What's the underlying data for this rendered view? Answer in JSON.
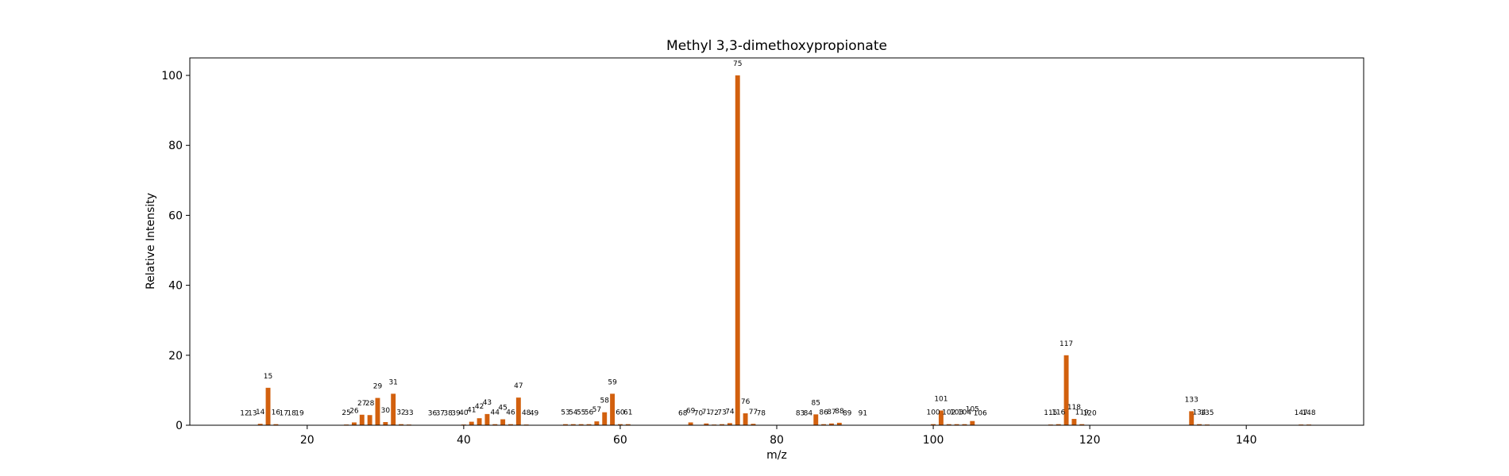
{
  "chart_data": {
    "type": "bar",
    "title": "Methyl 3,3-dimethoxypropionate",
    "xlabel": "m/z",
    "ylabel": "Relative Intensity",
    "xlim": [
      5,
      155
    ],
    "ylim": [
      0,
      105
    ],
    "xticks": [
      20,
      40,
      60,
      80,
      100,
      120,
      140
    ],
    "yticks": [
      0,
      20,
      40,
      60,
      80,
      100
    ],
    "grid": false,
    "bar_color": "#d2600e",
    "series": [
      {
        "x": [
          12,
          13,
          14,
          15,
          16,
          17,
          18,
          19,
          25,
          26,
          27,
          28,
          29,
          30,
          31,
          32,
          33,
          36,
          37,
          38,
          39,
          40,
          41,
          42,
          43,
          44,
          45,
          46,
          47,
          48,
          49,
          53,
          54,
          55,
          56,
          57,
          58,
          59,
          60,
          61,
          68,
          69,
          70,
          71,
          72,
          73,
          74,
          75,
          76,
          77,
          78,
          83,
          84,
          85,
          86,
          87,
          88,
          89,
          91,
          100,
          101,
          102,
          103,
          104,
          105,
          106,
          115,
          116,
          117,
          118,
          119,
          120,
          133,
          134,
          135,
          147,
          148
        ],
        "values": [
          0.1,
          0.1,
          0.4,
          10.7,
          0.3,
          0.1,
          0.1,
          0.1,
          0.2,
          0.8,
          3.0,
          2.9,
          7.8,
          0.9,
          9.0,
          0.3,
          0.2,
          0.1,
          0.1,
          0.1,
          0.1,
          0.2,
          1.0,
          2.0,
          3.2,
          0.3,
          1.7,
          0.3,
          7.9,
          0.2,
          0.1,
          0.3,
          0.3,
          0.3,
          0.3,
          1.1,
          3.7,
          9.0,
          0.3,
          0.3,
          0.1,
          0.8,
          0.1,
          0.5,
          0.2,
          0.3,
          0.6,
          100,
          3.4,
          0.4,
          0.1,
          0.1,
          0.1,
          3.1,
          0.3,
          0.5,
          0.7,
          0.1,
          0.1,
          0.3,
          4.2,
          0.3,
          0.3,
          0.3,
          1.2,
          0.1,
          0.2,
          0.3,
          20.0,
          1.8,
          0.3,
          0.1,
          4.0,
          0.3,
          0.2,
          0.2,
          0.2
        ]
      }
    ]
  }
}
